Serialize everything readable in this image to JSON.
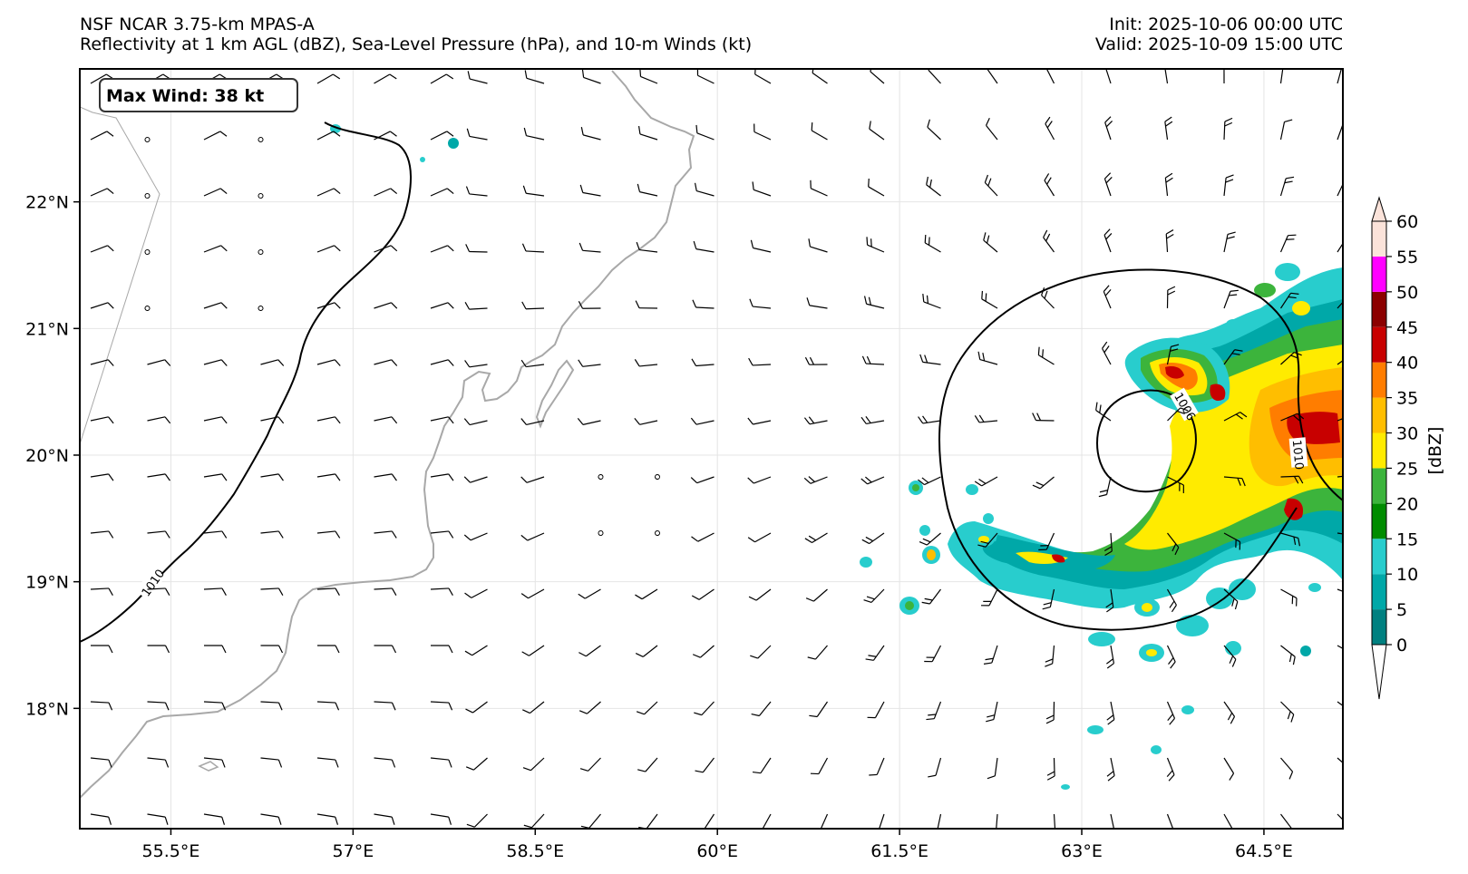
{
  "header": {
    "title_line1": "NSF NCAR 3.75-km MPAS-A",
    "title_line2": "Reflectivity at 1 km AGL (dBZ), Sea-Level Pressure (hPa), and 10-m Winds (kt)",
    "init": "Init: 2025-10-06 00:00 UTC",
    "valid": "Valid: 2025-10-09 15:00 UTC"
  },
  "map": {
    "lon_range": [
      54.75,
      65.15
    ],
    "lat_range": [
      17.05,
      23.05
    ],
    "lon_ticks": [
      {
        "value": 55.5,
        "label": "55.5°E"
      },
      {
        "value": 57.0,
        "label": "57°E"
      },
      {
        "value": 58.5,
        "label": "58.5°E"
      },
      {
        "value": 60.0,
        "label": "60°E"
      },
      {
        "value": 61.5,
        "label": "61.5°E"
      },
      {
        "value": 63.0,
        "label": "63°E"
      },
      {
        "value": 64.5,
        "label": "64.5°E"
      }
    ],
    "lat_ticks": [
      {
        "value": 18,
        "label": "18°N"
      },
      {
        "value": 19,
        "label": "19°N"
      },
      {
        "value": 20,
        "label": "20°N"
      },
      {
        "value": 21,
        "label": "21°N"
      },
      {
        "value": 22,
        "label": "22°N"
      }
    ],
    "grid": true
  },
  "annotation": {
    "max_wind": "Max Wind: 38 kt"
  },
  "pressure_contours": [
    {
      "label": "1010"
    },
    {
      "label": "1006"
    },
    {
      "label": "1010"
    }
  ],
  "colorbar": {
    "unit_label": "[dBZ]",
    "ticks": [
      "0",
      "5",
      "10",
      "15",
      "20",
      "25",
      "30",
      "35",
      "40",
      "45",
      "50",
      "55",
      "60"
    ],
    "colors": [
      "#ffffff",
      "#008080",
      "#00a8a8",
      "#28cdcd",
      "#008c00",
      "#3cb43c",
      "#ffeb00",
      "#ffbe00",
      "#ff7d00",
      "#c80000",
      "#8c0000",
      "#ff00ff",
      "#fbe3da"
    ]
  },
  "colors": {
    "coastline": "#a8a8a8",
    "border": "#a8a8a8",
    "contour": "#000000",
    "grid": "#e4e4e4"
  }
}
